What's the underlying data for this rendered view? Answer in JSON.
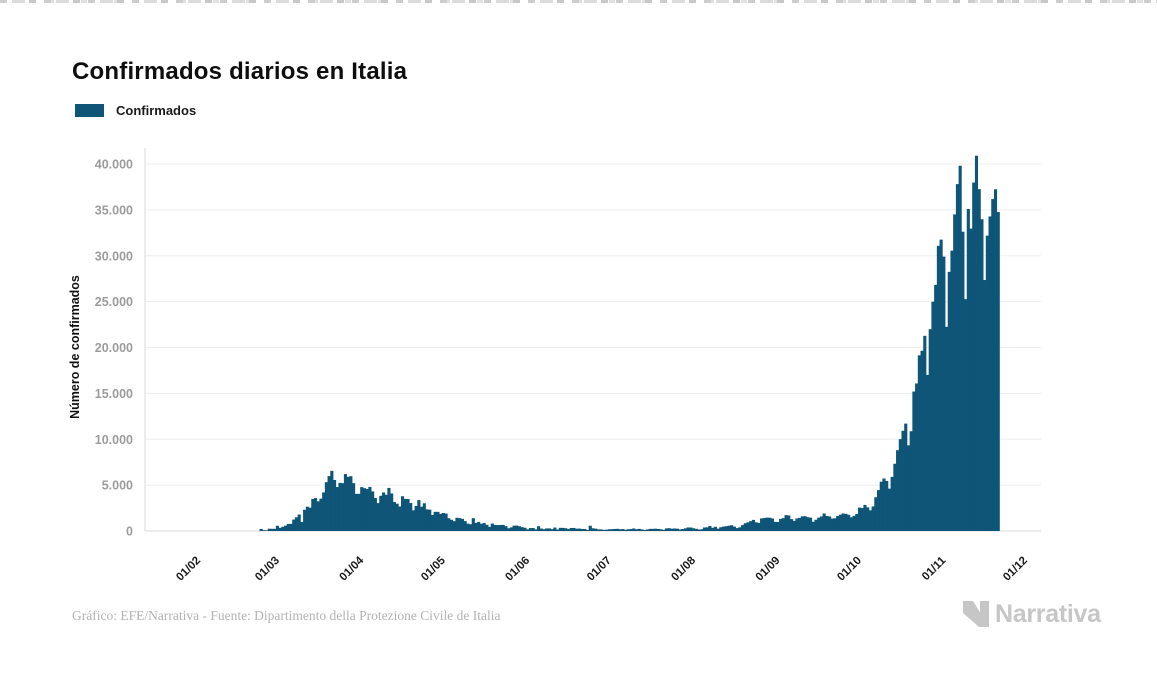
{
  "header": {
    "title": "Confirmados diarios en Italia"
  },
  "legend": {
    "items": [
      {
        "label": "Confirmados",
        "color": "#0e5578"
      }
    ]
  },
  "chart_data": {
    "type": "bar",
    "title": "Confirmados diarios en Italia",
    "series_name": "Confirmados",
    "bar_color": "#0e5578",
    "ylabel": "Número de confirmados",
    "grid": true,
    "legend_position": "top-left",
    "ylim": [
      0,
      40000
    ],
    "y_ticks": [
      {
        "label": "0",
        "value": 0
      },
      {
        "label": "5.000",
        "value": 5000
      },
      {
        "label": "10.000",
        "value": 10000
      },
      {
        "label": "15.000",
        "value": 15000
      },
      {
        "label": "20.000",
        "value": 20000
      },
      {
        "label": "25.000",
        "value": 25000
      },
      {
        "label": "30.000",
        "value": 30000
      },
      {
        "label": "35.000",
        "value": 35000
      },
      {
        "label": "40.000",
        "value": 40000
      }
    ],
    "x_ticks": [
      {
        "label": "01/02",
        "day": 0
      },
      {
        "label": "01/03",
        "day": 29
      },
      {
        "label": "01/04",
        "day": 60
      },
      {
        "label": "01/05",
        "day": 90
      },
      {
        "label": "01/06",
        "day": 121
      },
      {
        "label": "01/07",
        "day": 151
      },
      {
        "label": "01/08",
        "day": 182
      },
      {
        "label": "01/09",
        "day": 213
      },
      {
        "label": "01/10",
        "day": 243
      },
      {
        "label": "01/11",
        "day": 274
      },
      {
        "label": "01/12",
        "day": 304
      }
    ],
    "series_start_day": 23,
    "values": [
      221,
      93,
      78,
      250,
      238,
      240,
      566,
      342,
      466,
      587,
      769,
      778,
      1247,
      1492,
      1797,
      977,
      2313,
      2651,
      2547,
      3497,
      3590,
      3233,
      3526,
      4207,
      5322,
      5986,
      6557,
      5560,
      4789,
      5249,
      5210,
      6203,
      5909,
      5974,
      5217,
      4050,
      4053,
      4782,
      4668,
      4585,
      4805,
      4316,
      3599,
      3039,
      3836,
      4204,
      3951,
      4694,
      4092,
      3153,
      2972,
      2667,
      3786,
      3493,
      3491,
      3047,
      2256,
      2729,
      3370,
      2646,
      3021,
      2357,
      2324,
      1739,
      2091,
      2086,
      1872,
      1965,
      1900,
      1389,
      1221,
      1075,
      1444,
      1401,
      1327,
      1083,
      802,
      744,
      1402,
      888,
      992,
      789,
      875,
      675,
      451,
      813,
      665,
      642,
      652,
      669,
      531,
      300,
      397,
      584,
      593,
      516,
      416,
      355,
      178,
      318,
      321,
      177,
      518,
      270,
      197,
      280,
      283,
      202,
      379,
      163,
      346,
      338,
      301,
      210,
      329,
      331,
      251,
      264,
      224,
      221,
      113,
      577,
      296,
      255,
      175,
      174,
      126,
      142,
      187,
      201,
      223,
      235,
      192,
      208,
      138,
      193,
      214,
      276,
      188,
      234,
      169,
      114,
      162,
      230,
      233,
      249,
      219,
      190,
      128,
      282,
      306,
      252,
      275,
      255,
      170,
      212,
      289,
      386,
      379,
      295,
      239,
      159,
      190,
      384,
      402,
      552,
      347,
      463,
      259,
      412,
      481,
      523,
      574,
      629,
      479,
      320,
      403,
      642,
      845,
      947,
      1071,
      1210,
      953,
      878,
      1367,
      1411,
      1462,
      1444,
      1365,
      996,
      978,
      1326,
      1397,
      1733,
      1694,
      1297,
      1108,
      1370,
      1434,
      1597,
      1616,
      1501,
      1458,
      1008,
      1229,
      1452,
      1585,
      1907,
      1638,
      1587,
      1350,
      1392,
      1640,
      1786,
      1912,
      1869,
      1766,
      1494,
      1648,
      1851,
      2548,
      2499,
      2844,
      2578,
      2257,
      2677,
      3678,
      4458,
      5372,
      5724,
      5456,
      4619,
      5901,
      7332,
      8804,
      10010,
      10925,
      11705,
      9338,
      10874,
      15199,
      16079,
      19143,
      19644,
      21273,
      17012,
      21994,
      24991,
      26831,
      31084,
      31758,
      29907,
      22253,
      28244,
      30550,
      34505,
      37809,
      39811,
      32616,
      25271,
      35098,
      32961,
      37978,
      40902,
      37255,
      33979,
      27354,
      32191,
      34283,
      36176,
      37242,
      34767
    ]
  },
  "footer": {
    "credit": "Gráfico: EFE/Narrativa - Fuente: Dipartimento della Protezione Civile de Italia"
  },
  "brand": {
    "name": "Narrativa"
  }
}
